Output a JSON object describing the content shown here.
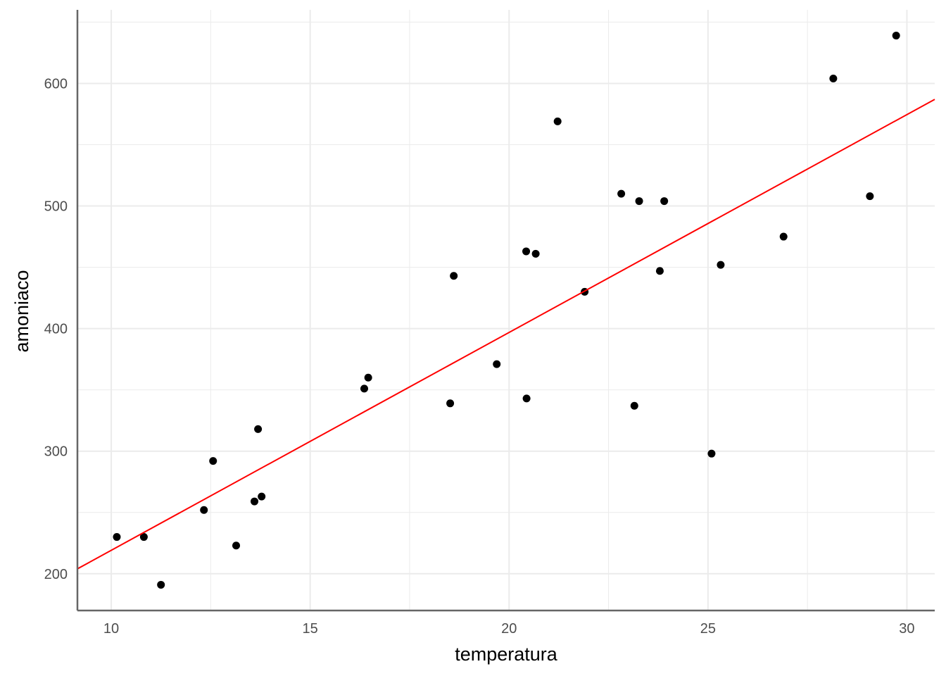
{
  "chart_data": {
    "type": "scatter",
    "title": "",
    "xlabel": "temperatura",
    "ylabel": "amoniaco",
    "xlim": [
      9.15,
      30.7
    ],
    "ylim": [
      170,
      660
    ],
    "x_ticks": [
      10,
      15,
      20,
      25,
      30
    ],
    "x_tick_labels": [
      "10",
      "15",
      "20",
      "25",
      "30"
    ],
    "y_ticks": [
      200,
      300,
      400,
      500,
      600
    ],
    "y_tick_labels": [
      "200",
      "300",
      "400",
      "500",
      "600"
    ],
    "grid": true,
    "legend": "none",
    "colors": {
      "points": "#000000",
      "fit_line": "#ff0000",
      "grid": "#ebebeb",
      "axis": "#666666"
    },
    "points": [
      {
        "x": 10.14,
        "y": 230
      },
      {
        "x": 10.82,
        "y": 230
      },
      {
        "x": 11.25,
        "y": 191
      },
      {
        "x": 12.33,
        "y": 252
      },
      {
        "x": 12.56,
        "y": 292
      },
      {
        "x": 13.14,
        "y": 223
      },
      {
        "x": 13.6,
        "y": 259
      },
      {
        "x": 13.69,
        "y": 318
      },
      {
        "x": 13.78,
        "y": 263
      },
      {
        "x": 16.36,
        "y": 351
      },
      {
        "x": 16.46,
        "y": 360
      },
      {
        "x": 18.52,
        "y": 339
      },
      {
        "x": 18.61,
        "y": 443
      },
      {
        "x": 19.69,
        "y": 371
      },
      {
        "x": 20.43,
        "y": 463
      },
      {
        "x": 20.44,
        "y": 343
      },
      {
        "x": 20.67,
        "y": 461
      },
      {
        "x": 21.22,
        "y": 569
      },
      {
        "x": 21.9,
        "y": 430
      },
      {
        "x": 22.82,
        "y": 510
      },
      {
        "x": 23.15,
        "y": 337
      },
      {
        "x": 23.27,
        "y": 504
      },
      {
        "x": 23.79,
        "y": 447
      },
      {
        "x": 23.9,
        "y": 504
      },
      {
        "x": 25.09,
        "y": 298
      },
      {
        "x": 25.32,
        "y": 452
      },
      {
        "x": 26.9,
        "y": 475
      },
      {
        "x": 28.15,
        "y": 604
      },
      {
        "x": 29.07,
        "y": 508
      },
      {
        "x": 29.73,
        "y": 639
      }
    ],
    "fit_line": {
      "x": [
        9.15,
        30.7
      ],
      "y": [
        204,
        587
      ]
    }
  }
}
